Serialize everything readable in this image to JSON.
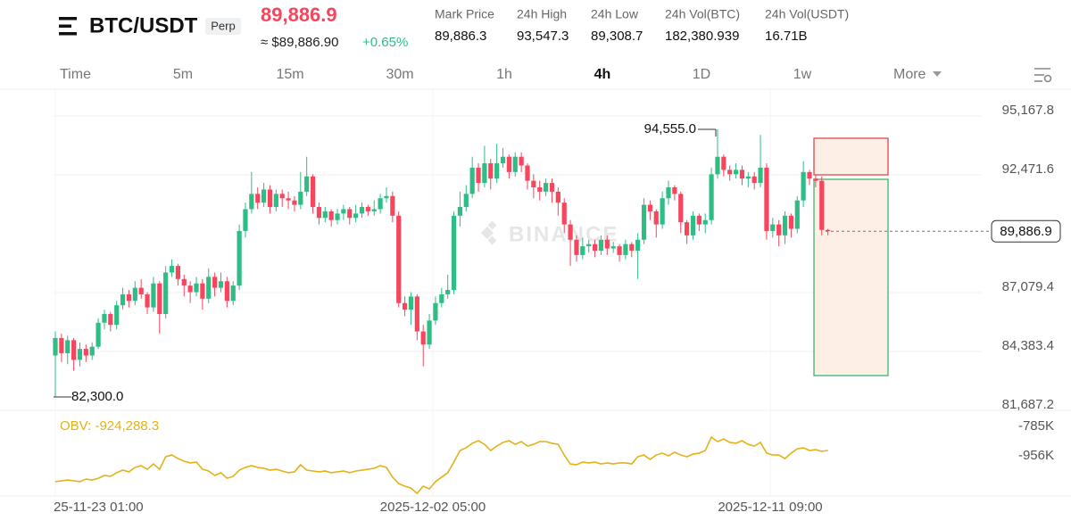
{
  "header": {
    "symbol": "BTC/USDT",
    "badge": "Perp",
    "price": "89,886.9",
    "price_usd": "≈ $89,886.90",
    "change": "+0.65%",
    "stats": [
      {
        "label": "Mark Price",
        "value": "89,886.3"
      },
      {
        "label": "24h High",
        "value": "93,547.3"
      },
      {
        "label": "24h Low",
        "value": "89,308.7"
      },
      {
        "label": "24h Vol(BTC)",
        "value": "182,380.939"
      },
      {
        "label": "24h Vol(USDT)",
        "value": "16.71B"
      }
    ]
  },
  "tabs": {
    "items": [
      "Time",
      "5m",
      "15m",
      "30m",
      "1h",
      "4h",
      "1D",
      "1w",
      "More"
    ],
    "active": 5
  },
  "chart_data": {
    "type": "candlestick",
    "up_color": "#2ebd85",
    "down_color": "#f6465d",
    "open": [
      84200,
      85000,
      84300,
      84900,
      84000,
      84500,
      84200,
      84600,
      85700,
      86100,
      85600,
      86500,
      87000,
      86700,
      87300,
      87000,
      86400,
      87500,
      86100,
      88000,
      88300,
      87700,
      87400,
      87100,
      87500,
      86800,
      87800,
      87300,
      87600,
      86700,
      87400,
      89900,
      90900,
      91600,
      91200,
      91800,
      91000,
      91600,
      91400,
      91300,
      91100,
      91700,
      92400,
      91000,
      90500,
      90800,
      90400,
      90700,
      90900,
      90500,
      90700,
      91000,
      90800,
      90900,
      91400,
      91500,
      90600,
      86600,
      86300,
      86900,
      85300,
      84700,
      85800,
      86600,
      87000,
      87200,
      90600,
      91000,
      91600,
      92800,
      92100,
      93000,
      92300,
      93000,
      93300,
      92600,
      93300,
      92900,
      92200,
      91900,
      91700,
      92100,
      91700,
      91200,
      90200,
      89500,
      88800,
      89200,
      89300,
      89000,
      89500,
      89100,
      89200,
      88800,
      89300,
      89000,
      89500,
      91100,
      90800,
      90200,
      91400,
      91900,
      91600,
      90300,
      89700,
      90600,
      90200,
      90400,
      92500,
      93300,
      92700,
      92500,
      92700,
      92300,
      92400,
      92100,
      92800,
      89900,
      90200,
      89700,
      90600,
      90000,
      91300,
      92600,
      92300,
      92200,
      89950
    ],
    "high": [
      85300,
      85200,
      85100,
      85000,
      84800,
      84700,
      84800,
      85900,
      86300,
      86200,
      86700,
      87300,
      87200,
      87600,
      87700,
      87100,
      87800,
      87600,
      88300,
      88600,
      88400,
      87900,
      87600,
      87800,
      87700,
      88200,
      88000,
      88000,
      87800,
      87600,
      90200,
      91200,
      92600,
      91900,
      92100,
      92000,
      91800,
      91800,
      91700,
      91500,
      92600,
      93300,
      92500,
      91200,
      91000,
      90900,
      90900,
      91100,
      91000,
      91100,
      91200,
      91100,
      91300,
      91600,
      91900,
      91700,
      90800,
      86900,
      87100,
      87000,
      85600,
      86100,
      86900,
      87300,
      87900,
      90800,
      91700,
      92000,
      93300,
      93000,
      93800,
      93200,
      93900,
      93700,
      93400,
      93500,
      93500,
      93000,
      92500,
      92200,
      92300,
      92300,
      91900,
      91400,
      90400,
      89700,
      89600,
      89500,
      89500,
      89700,
      89700,
      89400,
      89300,
      89500,
      89400,
      89800,
      91400,
      91300,
      90900,
      91700,
      92200,
      92000,
      91700,
      90400,
      90800,
      90700,
      90700,
      92800,
      94555,
      93400,
      92900,
      93000,
      92900,
      92600,
      92600,
      94300,
      93000,
      90500,
      90400,
      90800,
      90700,
      91500,
      93100,
      92700,
      92500,
      92400,
      90000
    ],
    "low": [
      82300,
      83900,
      83800,
      83500,
      83700,
      83900,
      84000,
      84500,
      85400,
      85300,
      85400,
      86300,
      86400,
      86500,
      86800,
      86100,
      86200,
      85200,
      85900,
      87800,
      87400,
      86900,
      86600,
      86900,
      86300,
      86600,
      86900,
      87100,
      86400,
      86500,
      87200,
      89600,
      90700,
      90900,
      91000,
      90700,
      90800,
      91000,
      90900,
      90800,
      90900,
      91500,
      90700,
      90200,
      90300,
      90100,
      90200,
      90400,
      90200,
      90300,
      90500,
      90600,
      90600,
      90700,
      91200,
      90300,
      86400,
      86000,
      85600,
      84900,
      83700,
      84500,
      85600,
      86400,
      86800,
      87000,
      90100,
      90800,
      91400,
      91700,
      91900,
      91800,
      92100,
      92800,
      92300,
      92400,
      92600,
      91800,
      91400,
      91300,
      91500,
      91200,
      90600,
      89800,
      88300,
      88500,
      88600,
      88900,
      88700,
      88800,
      88800,
      88900,
      88500,
      88600,
      88700,
      87700,
      89300,
      90400,
      89600,
      90000,
      91100,
      91300,
      89800,
      89300,
      89500,
      89900,
      89800,
      90200,
      92300,
      92400,
      92200,
      92300,
      92000,
      91900,
      91800,
      91900,
      89500,
      89600,
      89200,
      89300,
      89600,
      89800,
      91000,
      92000,
      91900,
      89700,
      89700
    ],
    "close": [
      85000,
      84300,
      84900,
      84000,
      84500,
      84200,
      84600,
      85700,
      86100,
      85600,
      86500,
      87000,
      86700,
      87300,
      87000,
      86400,
      87500,
      86100,
      88000,
      88300,
      87700,
      87400,
      87100,
      87500,
      86800,
      87800,
      87300,
      87600,
      86700,
      87400,
      89900,
      90900,
      91600,
      91200,
      91800,
      91000,
      91600,
      91400,
      91300,
      91100,
      91700,
      92400,
      91000,
      90500,
      90800,
      90400,
      90700,
      90900,
      90500,
      90700,
      91000,
      90800,
      90900,
      91400,
      91500,
      90600,
      86600,
      86300,
      86900,
      85300,
      84700,
      85800,
      86600,
      87000,
      87200,
      90600,
      91000,
      91600,
      92800,
      92100,
      93000,
      92300,
      93000,
      93300,
      92600,
      93300,
      92900,
      92200,
      91900,
      91700,
      92100,
      91700,
      91200,
      90200,
      89500,
      88800,
      89200,
      89300,
      89000,
      89500,
      89100,
      89200,
      88800,
      89300,
      89000,
      89500,
      91100,
      90800,
      90200,
      91400,
      91900,
      91600,
      90300,
      89700,
      90600,
      90200,
      90400,
      92500,
      93300,
      92700,
      92500,
      92700,
      92300,
      92400,
      92100,
      92800,
      89900,
      90200,
      89700,
      90600,
      90000,
      91300,
      92600,
      92300,
      92200,
      89950,
      89886.9
    ],
    "ylim": [
      81687.2,
      96393
    ],
    "yticks": [
      {
        "value": 95167.8,
        "label": "95,167.8"
      },
      {
        "value": 92471.6,
        "label": "92,471.6"
      },
      {
        "value": 87079.4,
        "label": "87,079.4"
      },
      {
        "value": 84383.4,
        "label": "84,383.4"
      },
      {
        "value": 81687.2,
        "label": "81,687.2"
      }
    ],
    "grid": true,
    "xlabels": [
      "25-11-23 01:00",
      "2025-12-02 05:00",
      "2025-12-11 09:00"
    ],
    "last_price": {
      "value": 89886.9,
      "label": "89,886.9"
    },
    "annotations": [
      {
        "value": 94555,
        "label": "94,555.0"
      },
      {
        "value": 82300,
        "label": "82,300.0"
      }
    ],
    "watermark": "BINANCE"
  },
  "obv": {
    "type": "line",
    "label": "OBV: -924,288.3",
    "color": "#e3b21a",
    "values": [
      -1106000,
      -1101000,
      -1096000,
      -1101000,
      -1106000,
      -1091000,
      -1096000,
      -1086000,
      -1070000,
      -1075000,
      -1054000,
      -1039000,
      -1049000,
      -1023000,
      -1013000,
      -1034000,
      -1003000,
      -1034000,
      -961000,
      -951000,
      -972000,
      -987000,
      -997000,
      -992000,
      -1034000,
      -1044000,
      -1070000,
      -1054000,
      -1086000,
      -1075000,
      -1039000,
      -1023000,
      -1013000,
      -1023000,
      -1028000,
      -1039000,
      -1034000,
      -1044000,
      -1054000,
      -1049000,
      -1008000,
      -1039000,
      -1044000,
      -1049000,
      -1044000,
      -1054000,
      -1049000,
      -1044000,
      -1054000,
      -1044000,
      -1039000,
      -1034000,
      -1028000,
      -1013000,
      -1023000,
      -1080000,
      -1117000,
      -1132000,
      -1143000,
      -1174000,
      -1132000,
      -1148000,
      -1106000,
      -1080000,
      -1054000,
      -992000,
      -925000,
      -909000,
      -883000,
      -868000,
      -889000,
      -925000,
      -899000,
      -878000,
      -868000,
      -889000,
      -873000,
      -899000,
      -889000,
      -873000,
      -873000,
      -883000,
      -889000,
      -951000,
      -1003000,
      -1008000,
      -992000,
      -997000,
      -992000,
      -1003000,
      -997000,
      -1003000,
      -997000,
      -997000,
      -1003000,
      -961000,
      -951000,
      -977000,
      -951000,
      -940000,
      -956000,
      -935000,
      -951000,
      -961000,
      -946000,
      -940000,
      -925000,
      -847000,
      -873000,
      -858000,
      -878000,
      -883000,
      -868000,
      -889000,
      -899000,
      -878000,
      -940000,
      -951000,
      -951000,
      -972000,
      -940000,
      -915000,
      -909000,
      -925000,
      -920000,
      -930000,
      -924288.3
    ],
    "ylim": [
      -1184000,
      -702000
    ],
    "yticks": [
      {
        "value": -785000,
        "label": "-785K"
      },
      {
        "value": -956000,
        "label": "-956K"
      }
    ]
  }
}
